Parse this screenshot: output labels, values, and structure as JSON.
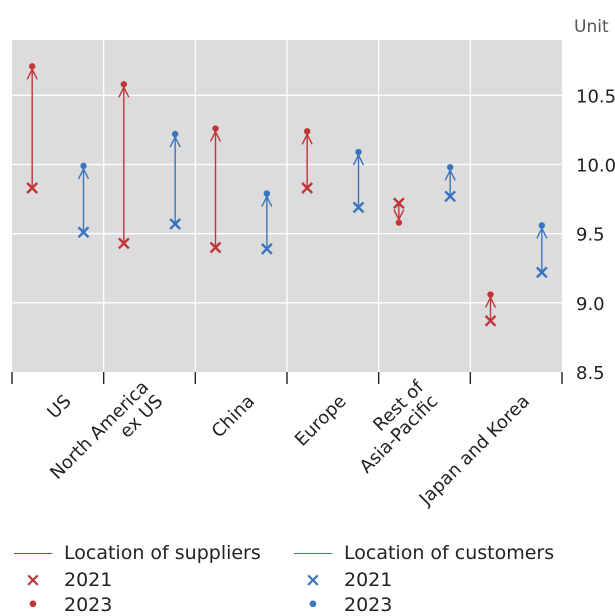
{
  "chart_data": {
    "type": "arrow-range",
    "unit_label": "Unit",
    "ylim": [
      8.5,
      10.9
    ],
    "yticks": [
      "10.5",
      "10.0",
      "9.5",
      "9.0",
      "8.5"
    ],
    "grid": true,
    "categories": [
      [
        "US"
      ],
      [
        "North America",
        "ex US"
      ],
      [
        "China"
      ],
      [
        "Europe"
      ],
      [
        "Rest of",
        "Asia-Pacific"
      ],
      [
        "Japan and Korea"
      ]
    ],
    "series": [
      {
        "name": "Location of suppliers",
        "color": "#c0353a",
        "from_2021": [
          9.83,
          9.43,
          9.4,
          9.83,
          9.72,
          8.87
        ],
        "to_2023": [
          10.71,
          10.58,
          10.26,
          10.24,
          9.58,
          9.06
        ]
      },
      {
        "name": "Location of customers",
        "color": "#3a74c0",
        "from_2021": [
          9.51,
          9.57,
          9.39,
          9.69,
          9.77,
          9.22
        ],
        "to_2023": [
          9.99,
          10.22,
          9.79,
          10.09,
          9.98,
          9.56
        ]
      }
    ]
  },
  "legend": {
    "suppliers_label": "Location of suppliers",
    "customers_label": "Location of customers",
    "year_2021": "2021",
    "year_2023": "2023",
    "cross_glyph": "×",
    "dot_glyph": "•"
  }
}
